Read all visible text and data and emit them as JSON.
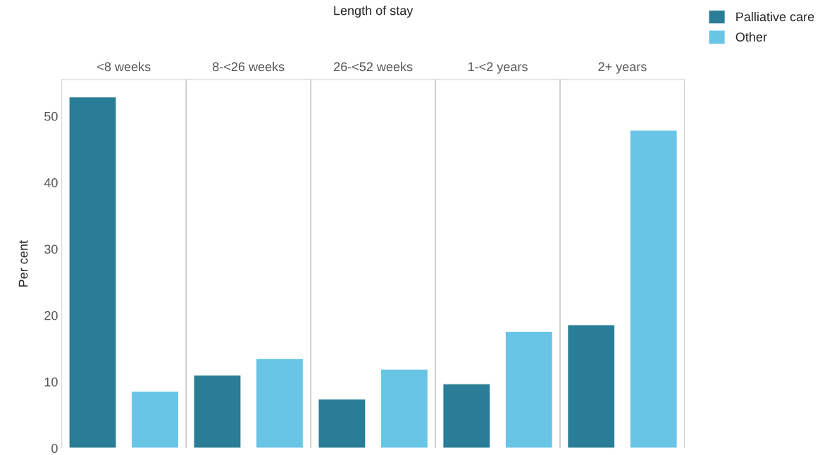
{
  "chart_data": {
    "type": "bar",
    "xlabel": "Length of stay",
    "ylabel": "Per cent",
    "categories": [
      "<8 weeks",
      "8-<26 weeks",
      "26-<52 weeks",
      "1-<2 years",
      "2+ years"
    ],
    "series": [
      {
        "name": "Palliative care",
        "color": "#297d96",
        "values": [
          52.9,
          11.0,
          7.4,
          9.7,
          18.6
        ]
      },
      {
        "name": "Other",
        "color": "#69c5e6",
        "values": [
          8.6,
          13.5,
          11.9,
          17.6,
          47.9
        ]
      }
    ],
    "ylim": [
      0,
      55.5
    ],
    "yticks": [
      0,
      10,
      20,
      30,
      40,
      50
    ],
    "grid": "x",
    "legend": "top right"
  }
}
